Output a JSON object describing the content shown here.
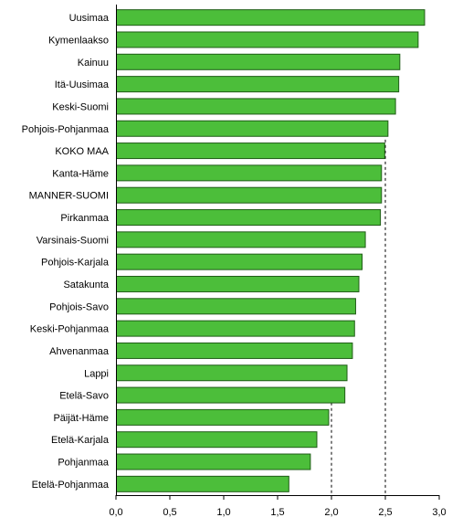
{
  "chart_data": {
    "type": "bar",
    "orientation": "horizontal",
    "title": "",
    "xlabel": "",
    "ylabel": "",
    "xlim": [
      0,
      3.0
    ],
    "grid": false,
    "legend": "none",
    "bar_color": "#4cbe3a",
    "bar_edge_color": "#1f5c16",
    "reference_lines": [
      {
        "value": 2.0,
        "style": "dashed",
        "through_categories": [
          "Päijät-Häme",
          "Etelä-Karjala",
          "Pohjanmaa",
          "Etelä-Pohjanmaa"
        ]
      },
      {
        "value": 2.5,
        "style": "dashed",
        "from_category": "KOKO MAA"
      }
    ],
    "categories": [
      "Uusimaa",
      "Kymenlaakso",
      "Kainuu",
      "Itä-Uusimaa",
      "Keski-Suomi",
      "Pohjois-Pohjanmaa",
      "KOKO MAA",
      "Kanta-Häme",
      "MANNER-SUOMI",
      "Pirkanmaa",
      "Varsinais-Suomi",
      "Pohjois-Karjala",
      "Satakunta",
      "Pohjois-Savo",
      "Keski-Pohjanmaa",
      "Ahvenanmaa",
      "Lappi",
      "Etelä-Savo",
      "Päijät-Häme",
      "Etelä-Karjala",
      "Pohjanmaa",
      "Etelä-Pohjanmaa"
    ],
    "values": [
      2.86,
      2.8,
      2.63,
      2.62,
      2.59,
      2.52,
      2.49,
      2.46,
      2.46,
      2.45,
      2.31,
      2.28,
      2.25,
      2.22,
      2.21,
      2.19,
      2.14,
      2.12,
      1.97,
      1.86,
      1.8,
      1.6
    ],
    "x_ticks": [
      "0,0",
      "0,5",
      "1,0",
      "1,5",
      "2,0",
      "2,5",
      "3,0"
    ]
  }
}
